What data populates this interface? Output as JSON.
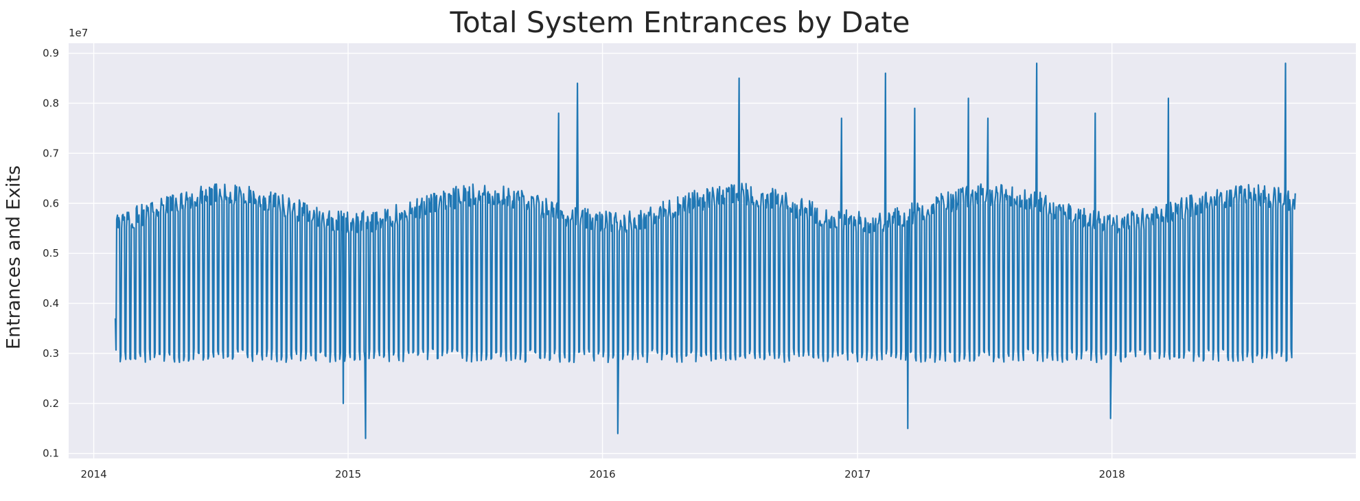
{
  "chart_data": {
    "type": "line",
    "title": "Total System Entrances by Date",
    "ylabel": "Entrances and Exits",
    "xlabel": "",
    "y_offset_label": "1e7",
    "x_tick_labels": [
      "2014",
      "2015",
      "2016",
      "2017",
      "2018"
    ],
    "x_tick_dates": [
      "2014-01-01",
      "2015-01-01",
      "2016-01-01",
      "2017-01-01",
      "2018-01-01"
    ],
    "y_tick_labels": [
      "0.1",
      "0.2",
      "0.3",
      "0.4",
      "0.5",
      "0.6",
      "0.7",
      "0.8",
      "0.9"
    ],
    "y_tick_values": [
      0.1,
      0.2,
      0.3,
      0.4,
      0.5,
      0.6,
      0.7,
      0.8,
      0.9
    ],
    "xlim": [
      "2013-11-26",
      "2018-12-17"
    ],
    "ylim": [
      0.09,
      0.92
    ],
    "grid": true,
    "background_color": "#eaeaf2",
    "line_color": "#1f77b4",
    "date_range": [
      "2014-02-01",
      "2018-09-21"
    ],
    "weekday_level_range": [
      0.54,
      0.64
    ],
    "weekend_level_range": [
      0.27,
      0.31
    ],
    "series": [
      {
        "notable_points": [
          {
            "date": "2014-02-01",
            "value": 0.37
          },
          {
            "date": "2014-12-25",
            "value": 0.2
          },
          {
            "date": "2015-01-26",
            "value": 0.13
          },
          {
            "date": "2015-10-30",
            "value": 0.78
          },
          {
            "date": "2015-11-26",
            "value": 0.84
          },
          {
            "date": "2016-01-23",
            "value": 0.14
          },
          {
            "date": "2016-07-15",
            "value": 0.85
          },
          {
            "date": "2016-12-09",
            "value": 0.77
          },
          {
            "date": "2017-02-10",
            "value": 0.86
          },
          {
            "date": "2017-03-14",
            "value": 0.15
          },
          {
            "date": "2017-03-24",
            "value": 0.79
          },
          {
            "date": "2017-06-09",
            "value": 0.81
          },
          {
            "date": "2017-07-07",
            "value": 0.77
          },
          {
            "date": "2017-09-15",
            "value": 0.88
          },
          {
            "date": "2017-12-08",
            "value": 0.78
          },
          {
            "date": "2017-12-30",
            "value": 0.17
          },
          {
            "date": "2018-03-23",
            "value": 0.81
          },
          {
            "date": "2018-09-07",
            "value": 0.88
          },
          {
            "date": "2018-09-21",
            "value": 0.62
          }
        ]
      }
    ]
  }
}
